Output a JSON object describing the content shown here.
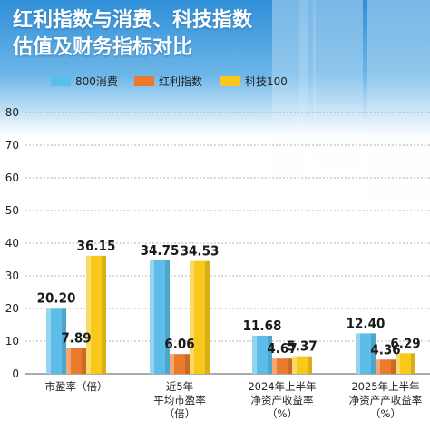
{
  "title_lines": [
    "红利指数与消费、科技指数",
    "估值及财务指标对比"
  ],
  "chart_data": {
    "type": "bar",
    "title": "红利指数与消费、科技指数估值及财务指标对比",
    "categories": [
      [
        "市盈率（倍）"
      ],
      [
        "近5年",
        "平均市盈率",
        "（倍）"
      ],
      [
        "2024年上半年",
        "净资产收益率",
        "（%）"
      ],
      [
        "2025年上半年",
        "净资产产收益率",
        "（%）"
      ]
    ],
    "series": [
      {
        "name": "800消费",
        "values": [
          20.2,
          34.75,
          11.68,
          12.4
        ],
        "labels": [
          "20.20",
          "34.75",
          "11.68",
          "12.40"
        ],
        "color": "#5bbde8"
      },
      {
        "name": "红利指数",
        "values": [
          7.89,
          6.06,
          4.67,
          4.36
        ],
        "labels": [
          "7.89",
          "6.06",
          "4.67",
          "4.36"
        ],
        "color": "#ea7a2c"
      },
      {
        "name": "科技100",
        "values": [
          36.15,
          34.53,
          5.37,
          6.29
        ],
        "labels": [
          "36.15",
          "34.53",
          "5.37",
          "6.29"
        ],
        "color": "#f8c81b"
      }
    ],
    "yticks": [
      0,
      10,
      20,
      30,
      40,
      50,
      60,
      70,
      80
    ],
    "ylim": [
      0,
      80
    ],
    "xlabel": "",
    "ylabel": "",
    "legend": "top"
  }
}
